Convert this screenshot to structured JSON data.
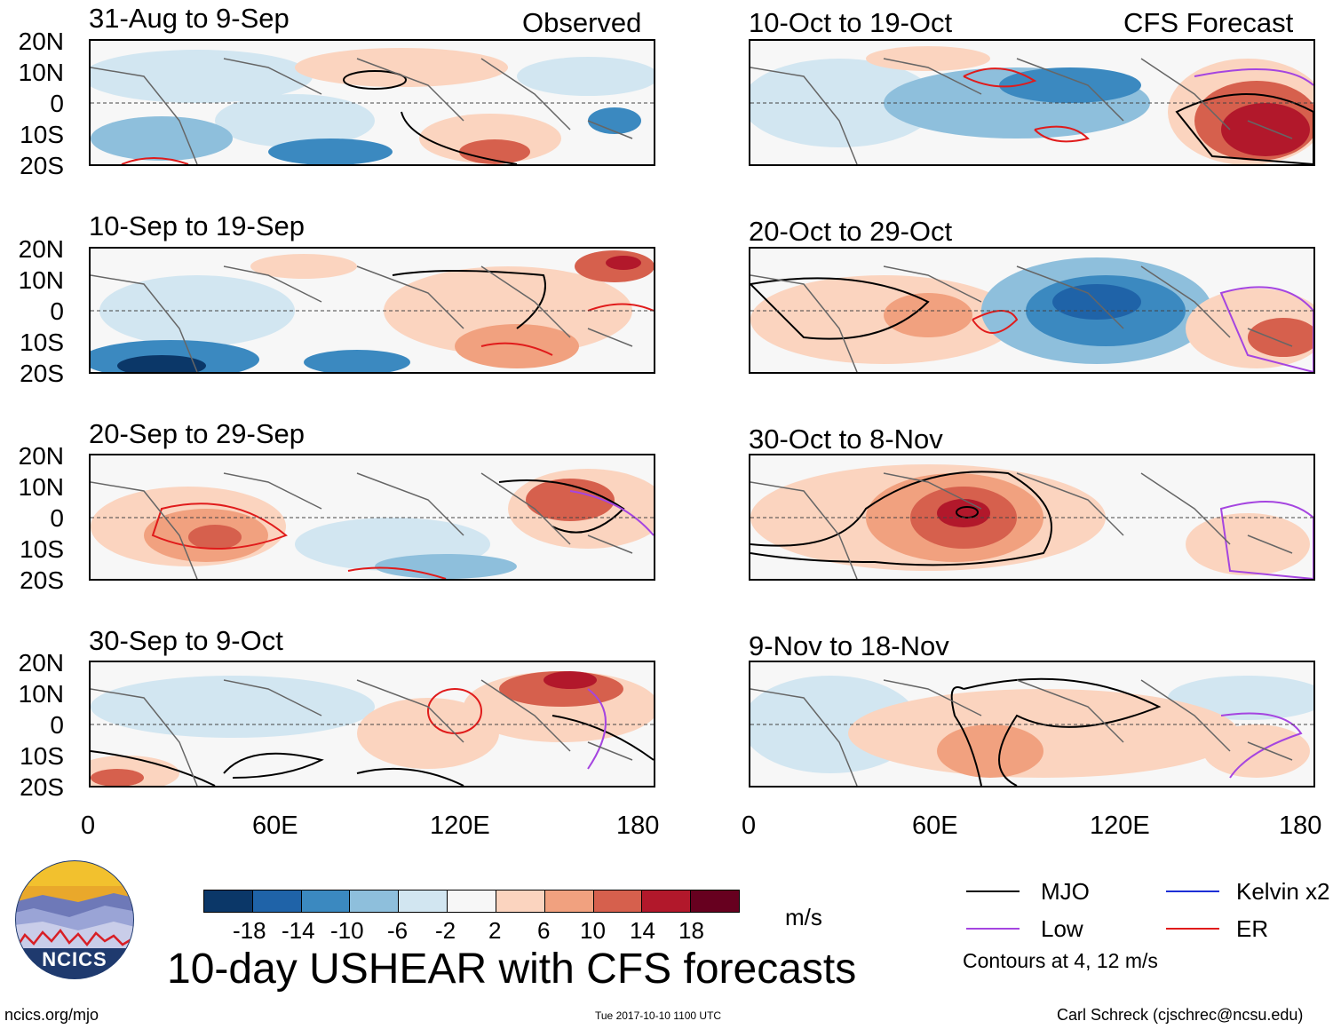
{
  "title": "10-day USHEAR with CFS forecasts",
  "headers": {
    "observed": "Observed",
    "forecast": "CFS Forecast"
  },
  "colors": {
    "neg18": "#0b3768",
    "neg14": "#1f63a8",
    "neg10": "#3b89c0",
    "neg6": "#8ebfdc",
    "neg2": "#d2e6f1",
    "zero": "#f7f7f7",
    "pos2": "#fbd4bf",
    "pos6": "#f1a17f",
    "pos10": "#d6604d",
    "pos14": "#b2182b",
    "pos18": "#67001f",
    "mjo": "#000000",
    "low": "#a545e0",
    "kelvin": "#1c2fd6",
    "er": "#e01b1b"
  },
  "lat_labels": [
    "20N",
    "10N",
    "0",
    "10S",
    "20S"
  ],
  "lon_labels": [
    "0",
    "60E",
    "120E",
    "180"
  ],
  "panels_observed": [
    {
      "period": "31-Aug to 9-Sep"
    },
    {
      "period": "10-Sep to 19-Sep"
    },
    {
      "period": "20-Sep to 29-Sep"
    },
    {
      "period": "30-Sep to 9-Oct"
    }
  ],
  "panels_forecast": [
    {
      "period": "10-Oct to 19-Oct"
    },
    {
      "period": "20-Oct to 29-Oct"
    },
    {
      "period": "30-Oct to 8-Nov"
    },
    {
      "period": "9-Nov to 18-Nov"
    }
  ],
  "colorbar": {
    "labels": [
      "-18",
      "-14",
      "-10",
      "-6",
      "-2",
      "2",
      "6",
      "10",
      "14",
      "18"
    ],
    "unit": "m/s"
  },
  "legend": {
    "mjo": "MJO",
    "kelvin": "Kelvin x2",
    "low": "Low",
    "er": "ER",
    "note": "Contours at 4, 12 m/s"
  },
  "logo": {
    "text": "NCICS"
  },
  "footer": {
    "url": "ncics.org/mjo",
    "timestamp": "Tue 2017-10-10 1100 UTC",
    "credit": "Carl Schreck (cjschrec@ncsu.edu)"
  }
}
